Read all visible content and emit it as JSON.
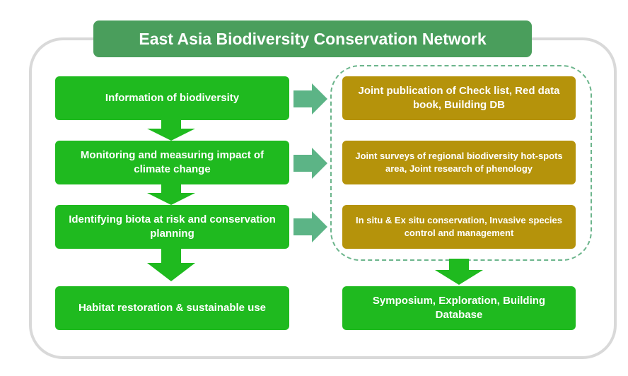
{
  "title": "East Asia Biodiversity Conservation Network",
  "left_column": [
    {
      "label": "Information of biodiversity"
    },
    {
      "label": "Monitoring and measuring impact of climate change"
    },
    {
      "label": "Identifying biota at risk and conservation planning"
    },
    {
      "label": "Habitat restoration & sustainable use"
    }
  ],
  "right_column": [
    {
      "label": "Joint publication of Check list, Red data book, Building DB"
    },
    {
      "label": "Joint surveys of regional biodiversity hot-spots area, Joint research of phenology"
    },
    {
      "label": "In situ & Ex situ conservation, Invasive species control and management"
    }
  ],
  "outcome": {
    "label": "Symposium, Exploration, Building Database"
  },
  "colors": {
    "title_bg": "#4a9e5c",
    "green_box": "#1fba1f",
    "gold_box": "#b5930b",
    "right_arrow": "#5cb486",
    "dashed_border": "#6cb58c",
    "frame": "#d9d9d9"
  },
  "icons": {
    "down_arrow": "down-arrow-icon",
    "right_arrow": "right-arrow-icon"
  }
}
